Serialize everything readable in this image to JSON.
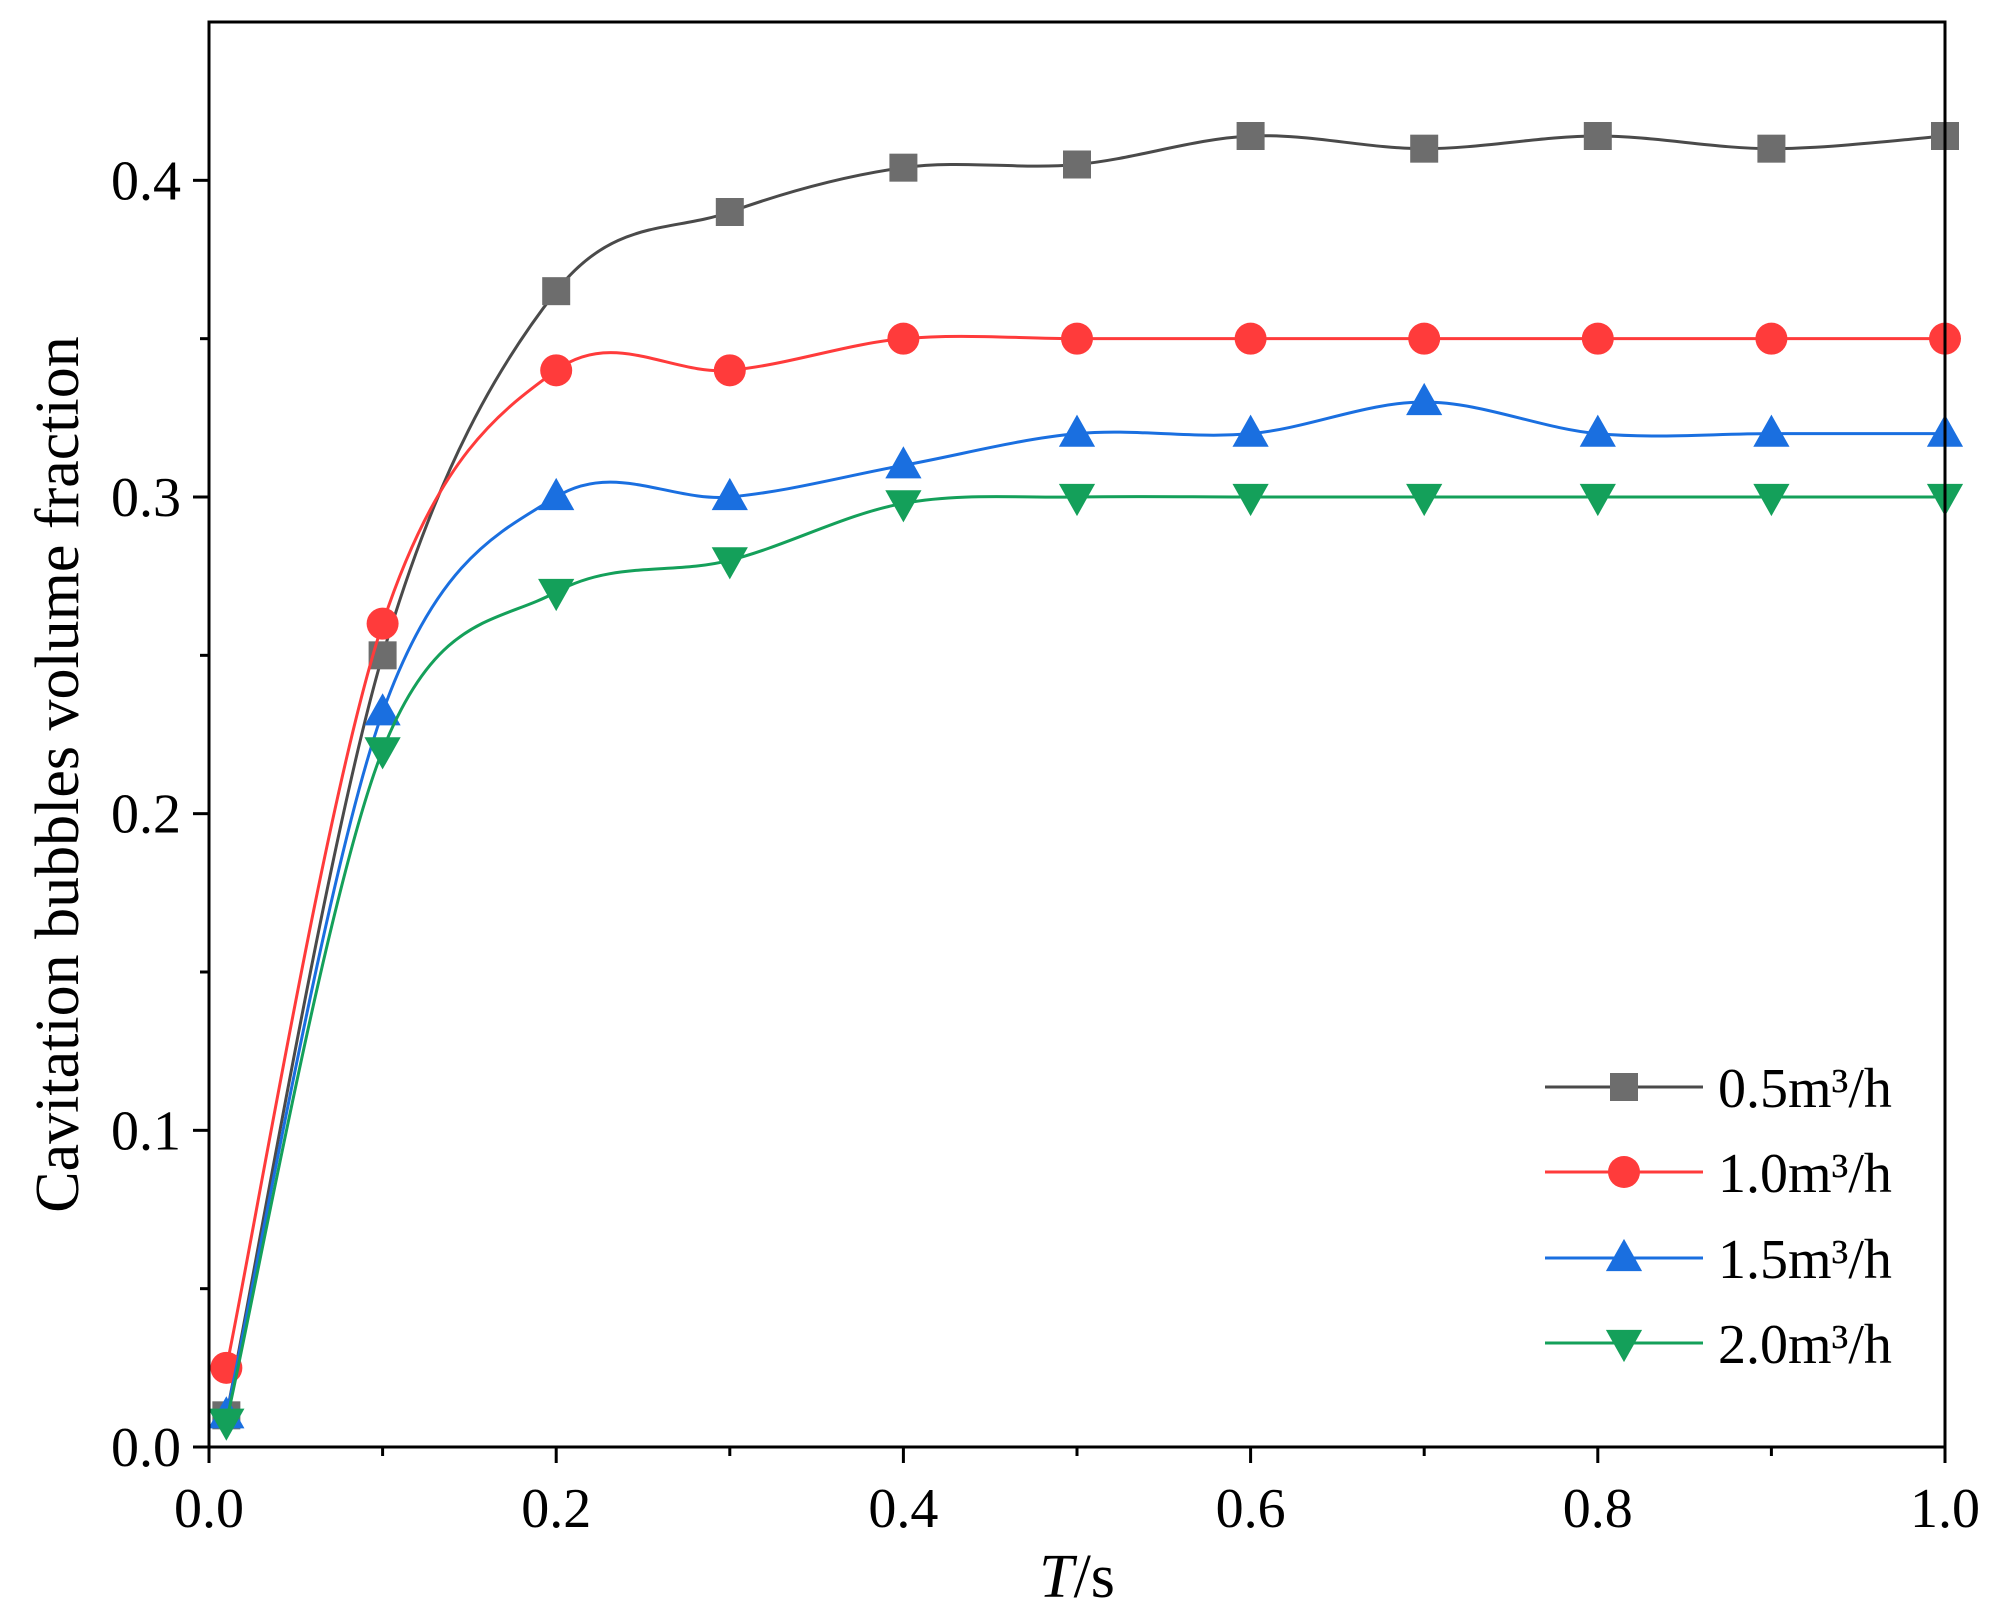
{
  "chart_data": {
    "type": "line",
    "xlabel": {
      "italic": "T",
      "rest": "/s"
    },
    "ylabel": "Cavitation bubbles volume fraction",
    "xlim": [
      0.0,
      1.0
    ],
    "ylim": [
      0.0,
      0.45
    ],
    "xticks": [
      0.0,
      0.2,
      0.4,
      0.6,
      0.8,
      1.0
    ],
    "xtick_labels": [
      "0.0",
      "0.2",
      "0.4",
      "0.6",
      "0.8",
      "1.0"
    ],
    "xminor": [
      0.1,
      0.3,
      0.5,
      0.7,
      0.9
    ],
    "yticks": [
      0.0,
      0.1,
      0.2,
      0.3,
      0.4
    ],
    "ytick_labels": [
      "0.0",
      "0.1",
      "0.2",
      "0.3",
      "0.4"
    ],
    "yminor": [
      0.05,
      0.15,
      0.25,
      0.35
    ],
    "legend_position": "bottom-right",
    "series": [
      {
        "name": "0.5m³/h",
        "marker": "square",
        "color": "#6d6d6d",
        "line_color": "#4a4a4a",
        "x": [
          0.01,
          0.1,
          0.2,
          0.3,
          0.4,
          0.5,
          0.6,
          0.7,
          0.8,
          0.9,
          1.0
        ],
        "y": [
          0.01,
          0.25,
          0.365,
          0.39,
          0.404,
          0.405,
          0.414,
          0.41,
          0.414,
          0.41,
          0.414
        ]
      },
      {
        "name": "1.0m³/h",
        "marker": "circle",
        "color": "#ff3b3b",
        "line_color": "#ff3b3b",
        "x": [
          0.01,
          0.1,
          0.2,
          0.3,
          0.4,
          0.5,
          0.6,
          0.7,
          0.8,
          0.9,
          1.0
        ],
        "y": [
          0.025,
          0.26,
          0.34,
          0.34,
          0.35,
          0.35,
          0.35,
          0.35,
          0.35,
          0.35,
          0.35
        ]
      },
      {
        "name": "1.5m³/h",
        "marker": "triangle-up",
        "color": "#1a6fe0",
        "line_color": "#1a6fe0",
        "x": [
          0.01,
          0.1,
          0.2,
          0.3,
          0.4,
          0.5,
          0.6,
          0.7,
          0.8,
          0.9,
          1.0
        ],
        "y": [
          0.01,
          0.232,
          0.3,
          0.3,
          0.31,
          0.32,
          0.32,
          0.33,
          0.32,
          0.32,
          0.32
        ]
      },
      {
        "name": "2.0m³/h",
        "marker": "triangle-down",
        "color": "#14a05a",
        "line_color": "#14a05a",
        "x": [
          0.01,
          0.1,
          0.2,
          0.3,
          0.4,
          0.5,
          0.6,
          0.7,
          0.8,
          0.9,
          1.0
        ],
        "y": [
          0.008,
          0.22,
          0.27,
          0.28,
          0.298,
          0.3,
          0.3,
          0.3,
          0.3,
          0.3,
          0.3
        ]
      }
    ]
  }
}
